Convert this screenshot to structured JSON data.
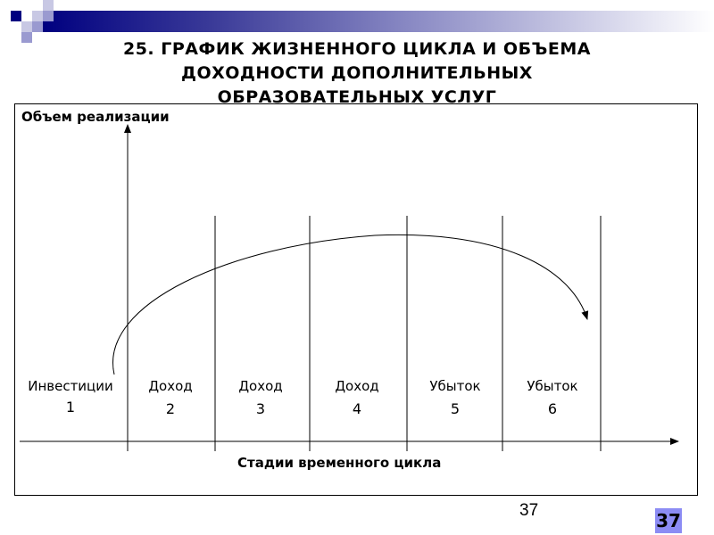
{
  "title_lines": [
    "25. ГРАФИК ЖИЗНЕННОГО ЦИКЛА И ОБЪЕМА",
    "ДОХОДНОСТИ ДОПОЛНИТЕЛЬНЫХ",
    "ОБРАЗОВАТЕЛЬНЫХ УСЛУГ"
  ],
  "diagram": {
    "y_axis_label": "Объем реализации",
    "x_axis_label": "Стадии временного цикла",
    "stages": [
      {
        "label": "Инвестиции",
        "number": "1"
      },
      {
        "label": "Доход",
        "number": "2"
      },
      {
        "label": "Доход",
        "number": "3"
      },
      {
        "label": "Доход",
        "number": "4"
      },
      {
        "label": "Убыток",
        "number": "5"
      },
      {
        "label": "Убыток",
        "number": "6"
      }
    ]
  },
  "page_number": "37",
  "page_badge": "37",
  "colors": {
    "accent": "#000080",
    "badge": "#8c8cf4"
  }
}
